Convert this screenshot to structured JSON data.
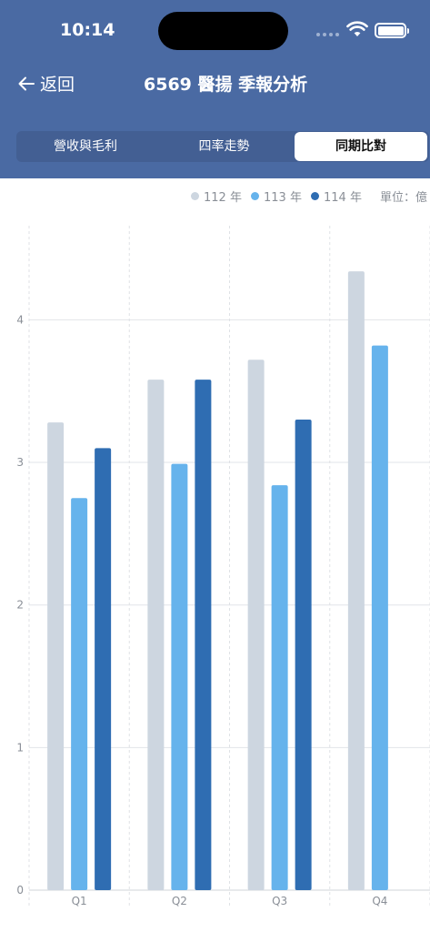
{
  "status": {
    "time": "10:14"
  },
  "nav": {
    "back_label": "返回",
    "title": "6569 醫揚 季報分析"
  },
  "tabs": [
    {
      "label": "營收與毛利",
      "active": false
    },
    {
      "label": "四率走勢",
      "active": false
    },
    {
      "label": "同期比對",
      "active": true
    }
  ],
  "legend": [
    {
      "label": "112 年",
      "color": "#cdd6e0"
    },
    {
      "label": "113 年",
      "color": "#66b3ec"
    },
    {
      "label": "114 年",
      "color": "#2f6db2"
    }
  ],
  "unit": "單位：億",
  "chart_data": {
    "type": "bar",
    "categories": [
      "Q1",
      "Q2",
      "Q3",
      "Q4"
    ],
    "series": [
      {
        "name": "112 年",
        "color": "#cdd6e0",
        "values": [
          3.28,
          3.58,
          3.72,
          4.34
        ]
      },
      {
        "name": "113 年",
        "color": "#66b3ec",
        "values": [
          2.75,
          2.99,
          2.84,
          3.82
        ]
      },
      {
        "name": "114 年",
        "color": "#2f6db2",
        "values": [
          3.1,
          3.58,
          3.3,
          null
        ]
      }
    ],
    "ylim": [
      0,
      4.66
    ],
    "yticks": [
      0,
      1,
      2,
      3,
      4
    ],
    "grid": true,
    "legend_position": "top-right"
  }
}
